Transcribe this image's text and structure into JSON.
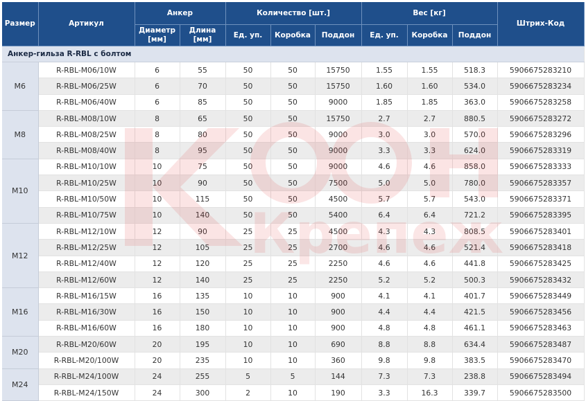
{
  "header": {
    "size": "Размер",
    "article": "Артикул",
    "anchor": "Анкер",
    "diameter": "Диаметр [мм]",
    "length": "Длина [мм]",
    "quantity": "Количество [шт.]",
    "weight": "Вес [кг]",
    "unit": "Ед. уп.",
    "box": "Коробка",
    "pallet": "Поддон",
    "barcode": "Штрих-Код"
  },
  "section_title": "Анкер-гильза R-RBL с болтом",
  "groups": [
    {
      "size": "M6",
      "rows": [
        {
          "article": "R-RBL-M06/10W",
          "diameter": "6",
          "length": "55",
          "q_unit": "50",
          "q_box": "50",
          "q_pallet": "15750",
          "w_unit": "1.55",
          "w_box": "1.55",
          "w_pallet": "518.3",
          "barcode": "5906675283210"
        },
        {
          "article": "R-RBL-M06/25W",
          "diameter": "6",
          "length": "70",
          "q_unit": "50",
          "q_box": "50",
          "q_pallet": "15750",
          "w_unit": "1.60",
          "w_box": "1.60",
          "w_pallet": "534.0",
          "barcode": "5906675283234"
        },
        {
          "article": "R-RBL-M06/40W",
          "diameter": "6",
          "length": "85",
          "q_unit": "50",
          "q_box": "50",
          "q_pallet": "9000",
          "w_unit": "1.85",
          "w_box": "1.85",
          "w_pallet": "363.0",
          "barcode": "5906675283258"
        }
      ]
    },
    {
      "size": "M8",
      "rows": [
        {
          "article": "R-RBL-M08/10W",
          "diameter": "8",
          "length": "65",
          "q_unit": "50",
          "q_box": "50",
          "q_pallet": "15750",
          "w_unit": "2.7",
          "w_box": "2.7",
          "w_pallet": "880.5",
          "barcode": "5906675283272"
        },
        {
          "article": "R-RBL-M08/25W",
          "diameter": "8",
          "length": "80",
          "q_unit": "50",
          "q_box": "50",
          "q_pallet": "9000",
          "w_unit": "3.0",
          "w_box": "3.0",
          "w_pallet": "570.0",
          "barcode": "5906675283296"
        },
        {
          "article": "R-RBL-M08/40W",
          "diameter": "8",
          "length": "95",
          "q_unit": "50",
          "q_box": "50",
          "q_pallet": "9000",
          "w_unit": "3.3",
          "w_box": "3.3",
          "w_pallet": "624.0",
          "barcode": "5906675283319"
        }
      ]
    },
    {
      "size": "M10",
      "rows": [
        {
          "article": "R-RBL-M10/10W",
          "diameter": "10",
          "length": "75",
          "q_unit": "50",
          "q_box": "50",
          "q_pallet": "9000",
          "w_unit": "4.6",
          "w_box": "4.6",
          "w_pallet": "858.0",
          "barcode": "5906675283333"
        },
        {
          "article": "R-RBL-M10/25W",
          "diameter": "10",
          "length": "90",
          "q_unit": "50",
          "q_box": "50",
          "q_pallet": "7500",
          "w_unit": "5.0",
          "w_box": "5.0",
          "w_pallet": "780.0",
          "barcode": "5906675283357"
        },
        {
          "article": "R-RBL-M10/50W",
          "diameter": "10",
          "length": "115",
          "q_unit": "50",
          "q_box": "50",
          "q_pallet": "4500",
          "w_unit": "5.7",
          "w_box": "5.7",
          "w_pallet": "543.0",
          "barcode": "5906675283371"
        },
        {
          "article": "R-RBL-M10/75W",
          "diameter": "10",
          "length": "140",
          "q_unit": "50",
          "q_box": "50",
          "q_pallet": "5400",
          "w_unit": "6.4",
          "w_box": "6.4",
          "w_pallet": "721.2",
          "barcode": "5906675283395"
        }
      ]
    },
    {
      "size": "M12",
      "rows": [
        {
          "article": "R-RBL-M12/10W",
          "diameter": "12",
          "length": "90",
          "q_unit": "25",
          "q_box": "25",
          "q_pallet": "4500",
          "w_unit": "4.3",
          "w_box": "4.3",
          "w_pallet": "808.5",
          "barcode": "5906675283401"
        },
        {
          "article": "R-RBL-M12/25W",
          "diameter": "12",
          "length": "105",
          "q_unit": "25",
          "q_box": "25",
          "q_pallet": "2700",
          "w_unit": "4.6",
          "w_box": "4.6",
          "w_pallet": "521.4",
          "barcode": "5906675283418"
        },
        {
          "article": "R-RBL-M12/40W",
          "diameter": "12",
          "length": "120",
          "q_unit": "25",
          "q_box": "25",
          "q_pallet": "2250",
          "w_unit": "4.6",
          "w_box": "4.6",
          "w_pallet": "441.8",
          "barcode": "5906675283425"
        },
        {
          "article": "R-RBL-M12/60W",
          "diameter": "12",
          "length": "140",
          "q_unit": "25",
          "q_box": "25",
          "q_pallet": "2250",
          "w_unit": "5.2",
          "w_box": "5.2",
          "w_pallet": "500.3",
          "barcode": "5906675283432"
        }
      ]
    },
    {
      "size": "M16",
      "rows": [
        {
          "article": "R-RBL-M16/15W",
          "diameter": "16",
          "length": "135",
          "q_unit": "10",
          "q_box": "10",
          "q_pallet": "900",
          "w_unit": "4.1",
          "w_box": "4.1",
          "w_pallet": "401.7",
          "barcode": "5906675283449"
        },
        {
          "article": "R-RBL-M16/30W",
          "diameter": "16",
          "length": "150",
          "q_unit": "10",
          "q_box": "10",
          "q_pallet": "900",
          "w_unit": "4.4",
          "w_box": "4.4",
          "w_pallet": "421.5",
          "barcode": "5906675283456"
        },
        {
          "article": "R-RBL-M16/60W",
          "diameter": "16",
          "length": "180",
          "q_unit": "10",
          "q_box": "10",
          "q_pallet": "900",
          "w_unit": "4.8",
          "w_box": "4.8",
          "w_pallet": "461.1",
          "barcode": "5906675283463"
        }
      ]
    },
    {
      "size": "M20",
      "rows": [
        {
          "article": "R-RBL-M20/60W",
          "diameter": "20",
          "length": "195",
          "q_unit": "10",
          "q_box": "10",
          "q_pallet": "690",
          "w_unit": "8.8",
          "w_box": "8.8",
          "w_pallet": "634.4",
          "barcode": "5906675283487"
        },
        {
          "article": "R-RBL-M20/100W",
          "diameter": "20",
          "length": "235",
          "q_unit": "10",
          "q_box": "10",
          "q_pallet": "360",
          "w_unit": "9.8",
          "w_box": "9.8",
          "w_pallet": "383.5",
          "barcode": "5906675283470"
        }
      ]
    },
    {
      "size": "M24",
      "rows": [
        {
          "article": "R-RBL-M24/100W",
          "diameter": "24",
          "length": "255",
          "q_unit": "5",
          "q_box": "5",
          "q_pallet": "144",
          "w_unit": "7.3",
          "w_box": "7.3",
          "w_pallet": "238.8",
          "barcode": "5906675283494"
        },
        {
          "article": "R-RBL-M24/150W",
          "diameter": "24",
          "length": "300",
          "q_unit": "2",
          "q_box": "10",
          "q_pallet": "190",
          "w_unit": "3.3",
          "w_box": "16.3",
          "w_pallet": "339.7",
          "barcode": "5906675283500"
        }
      ]
    }
  ],
  "watermark": {
    "text": "Крепеж",
    "color": "#e23b3b"
  }
}
